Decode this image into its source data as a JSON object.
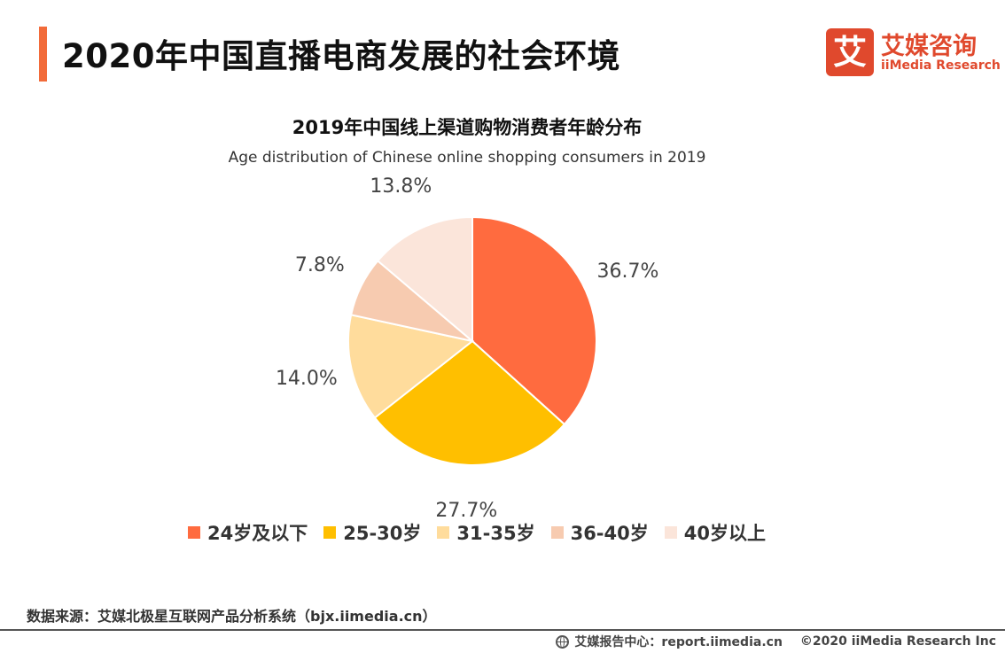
{
  "header": {
    "title": "2020年中国直播电商发展的社会环境",
    "accent_color": "#f26b3a"
  },
  "logo": {
    "icon_text": "艾",
    "name_cn": "艾媒咨询",
    "name_en": "iiMedia Research",
    "color": "#e0492d"
  },
  "chart_data": {
    "type": "pie",
    "title": "2019年中国线上渠道购物消费者年龄分布",
    "subtitle": "Age distribution of Chinese online shopping consumers in 2019",
    "categories": [
      "24岁及以下",
      "25-30岁",
      "31-35岁",
      "36-40岁",
      "40岁以上"
    ],
    "values": [
      36.7,
      27.7,
      14.0,
      7.8,
      13.8
    ],
    "labels": [
      "36.7%",
      "27.7%",
      "14.0%",
      "7.8%",
      "13.8%"
    ],
    "colors": [
      "#ff6b3f",
      "#ffbf00",
      "#ffdc9c",
      "#f7cbb0",
      "#fbe5da"
    ],
    "legend_position": "bottom"
  },
  "footer": {
    "source": "数据来源：艾媒北极星互联网产品分析系统（bjx.iimedia.cn）",
    "report_center": "艾媒报告中心：report.iimedia.cn",
    "copyright": "©2020  iiMedia Research  Inc"
  }
}
